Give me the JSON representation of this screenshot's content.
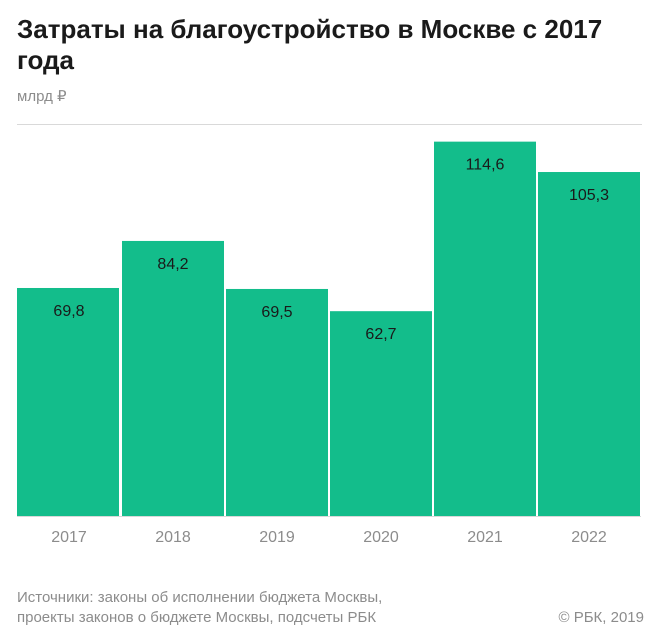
{
  "title": "Затраты на благоустройство в Москве с 2017 года",
  "unit_label": "млрд ₽",
  "source_line1": "Источники: законы об исполнении бюджета Москвы,",
  "source_line2": "проекты законов о бюджете Москвы, подсчеты РБК",
  "copyright": "© РБК, 2019",
  "colors": {
    "bar": "#13bd8b",
    "label": "#1a1a1a",
    "tick": "#8c8c8c",
    "rule": "#d9d9d9"
  },
  "chart_data": {
    "type": "bar",
    "title": "Затраты на благоустройство в Москве с 2017 года",
    "ylabel": "млрд ₽",
    "xlabel": "",
    "categories": [
      "2017",
      "2018",
      "2019",
      "2020",
      "2021",
      "2022"
    ],
    "values": [
      69.8,
      84.2,
      69.5,
      62.7,
      114.6,
      105.3
    ],
    "value_labels": [
      "69,8",
      "84,2",
      "69,5",
      "62,7",
      "114,6",
      "105,3"
    ],
    "ylim": [
      0,
      120
    ],
    "grid": false,
    "legend": "none"
  }
}
